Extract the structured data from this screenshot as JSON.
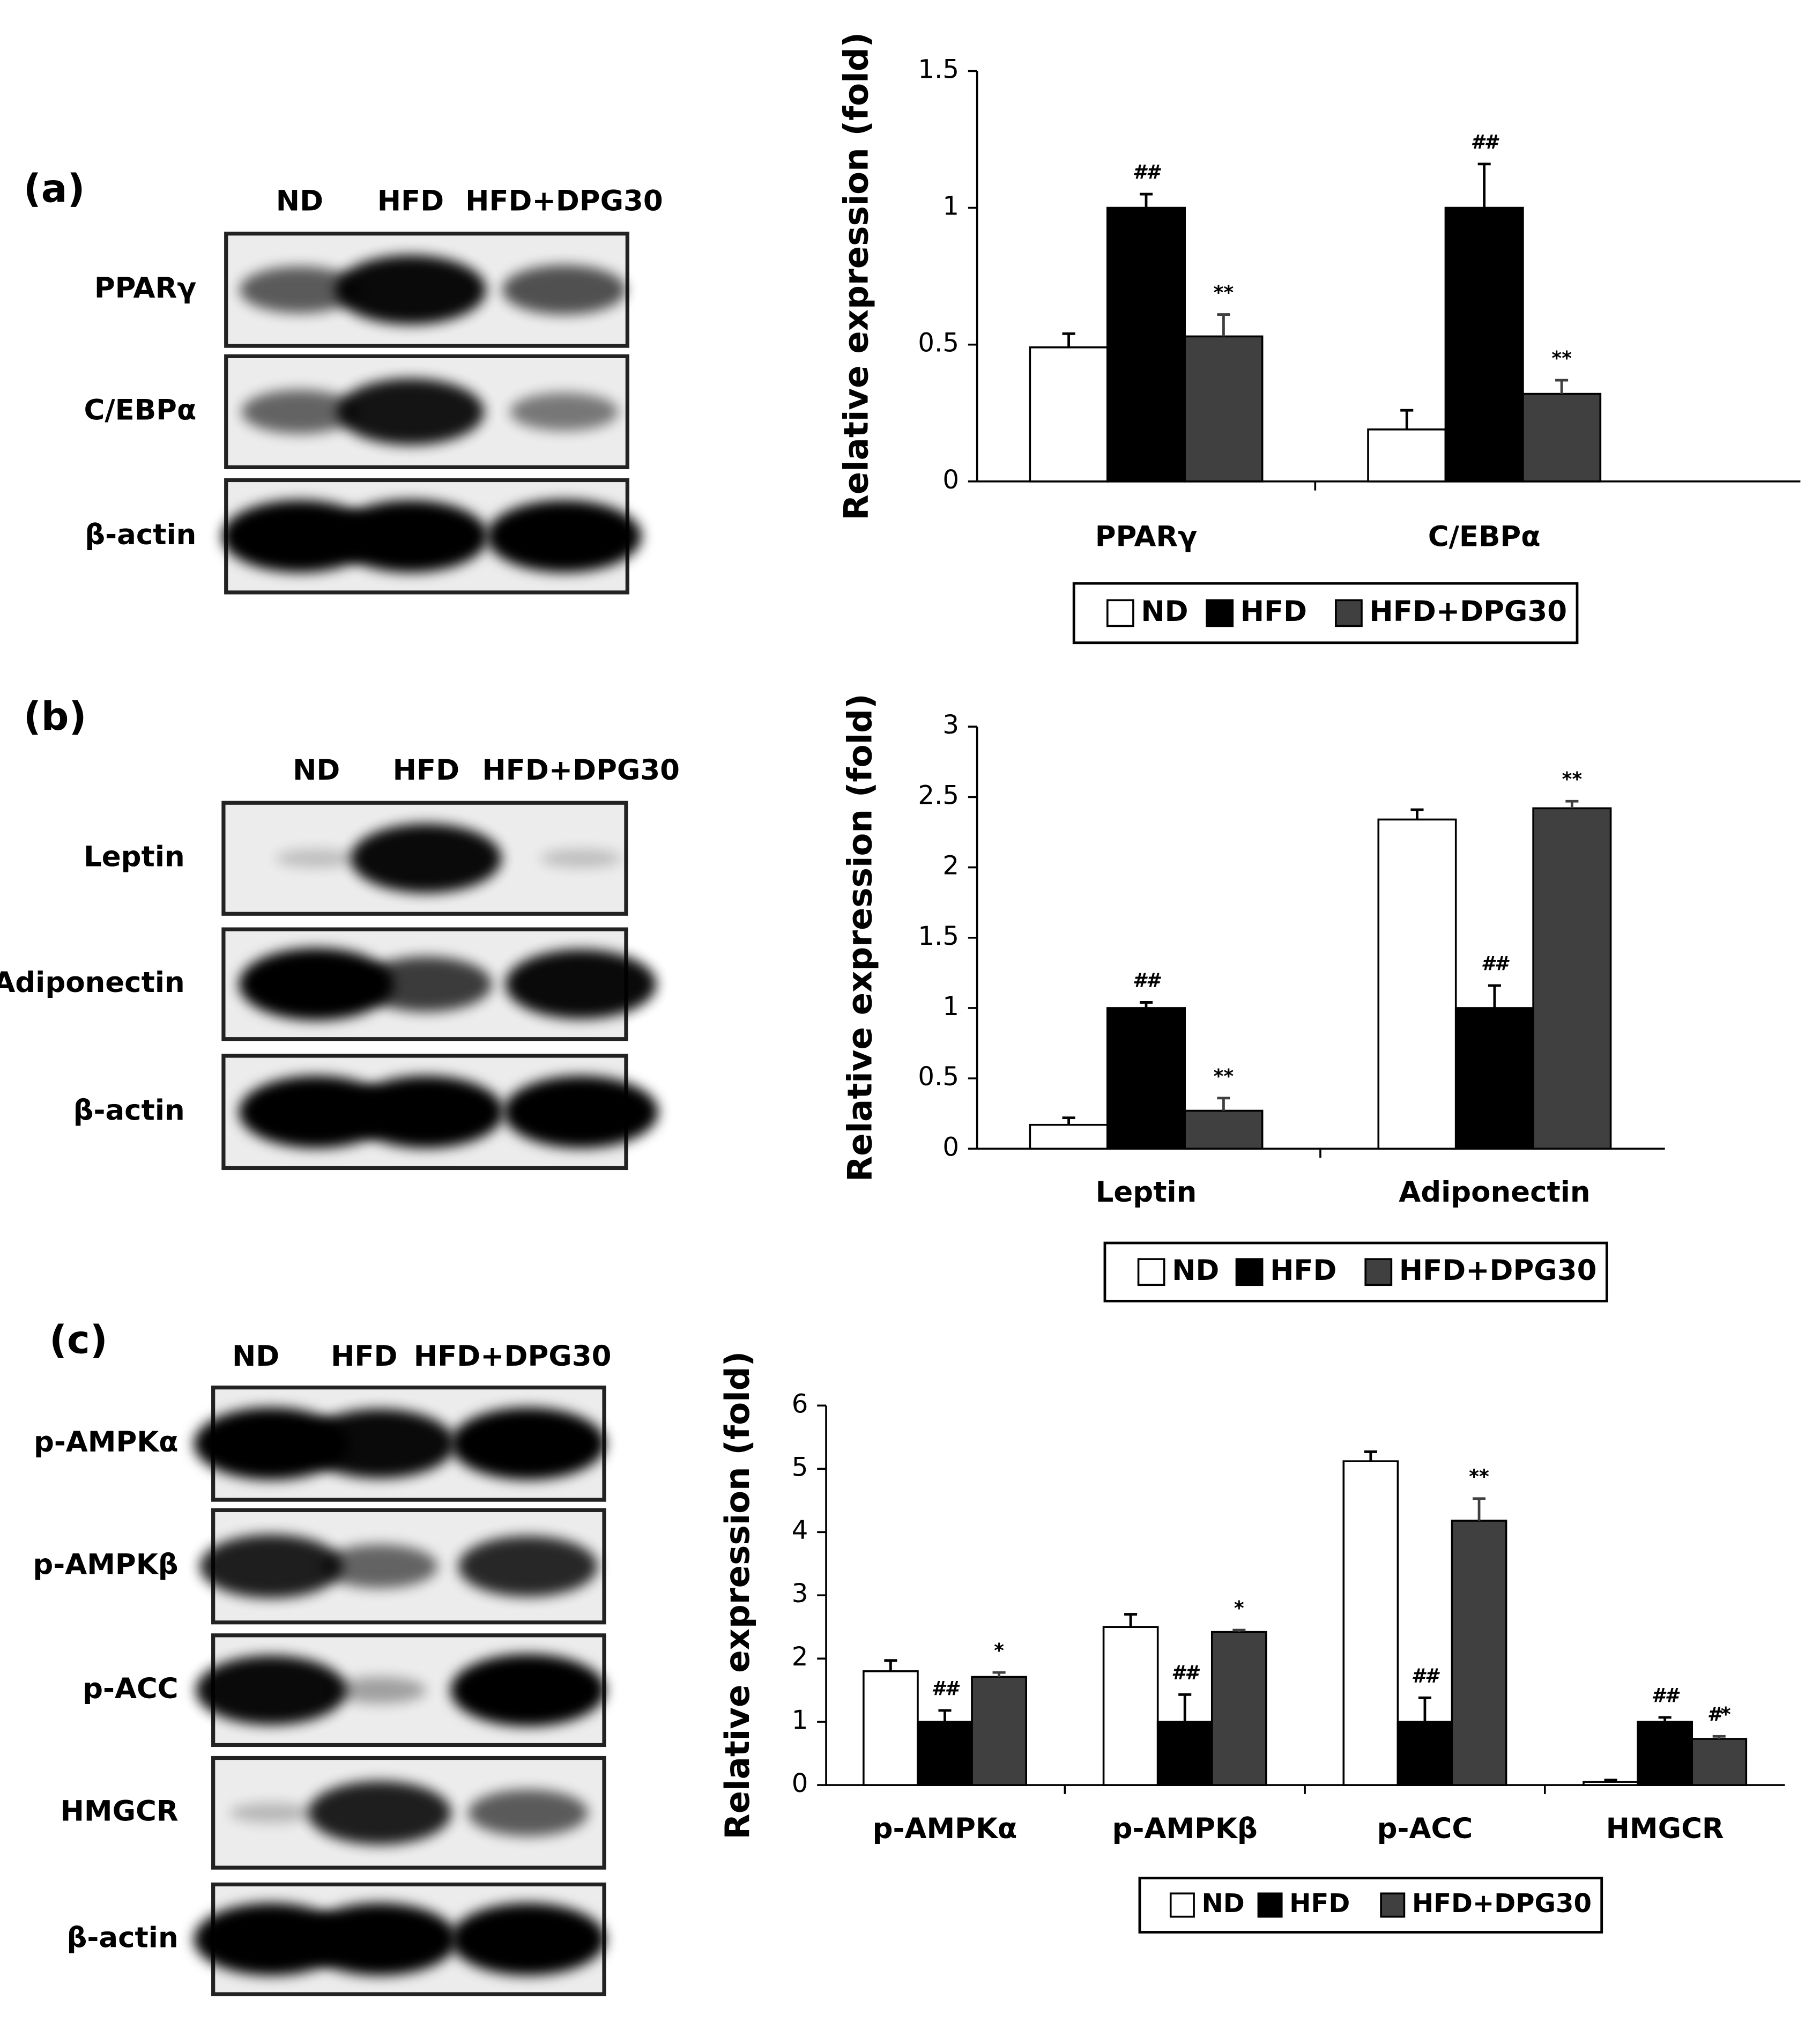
{
  "blots": [
    {
      "label": "(a)",
      "lanes": [
        "ND",
        "HFD",
        "HFD+DPG30"
      ],
      "rows": [
        "PPARγ",
        "C/EBPα",
        "β-actin"
      ]
    },
    {
      "label": "(b)",
      "lanes": [
        "ND",
        "HFD",
        "HFD+DPG30"
      ],
      "rows": [
        "Leptin",
        "Adiponectin",
        "β-actin"
      ]
    },
    {
      "label": "(c)",
      "lanes": [
        "ND",
        "HFD",
        "HFD+DPG30"
      ],
      "rows": [
        "p-AMPKα",
        "p-AMPKβ",
        "p-ACC",
        "HMGCR",
        "β-actin"
      ]
    }
  ],
  "chart_data": [
    {
      "type": "bar",
      "ylabel": "Relative expression  (fold)",
      "categories": [
        "PPARγ",
        "C/EBPα"
      ],
      "ylim": [
        0,
        1.5
      ],
      "yticks": [
        0,
        0.5,
        1,
        1.5
      ],
      "legend": "bottom",
      "series": [
        {
          "name": "ND",
          "color": "#ffffff",
          "values": [
            0.49,
            0.19
          ],
          "errors": [
            0.05,
            0.07
          ]
        },
        {
          "name": "HFD",
          "color": "#000000",
          "values": [
            1.0,
            1.0
          ],
          "errors": [
            0.05,
            0.16
          ],
          "significance": [
            "##",
            "##"
          ]
        },
        {
          "name": "HFD+DPG30",
          "color": "#404040",
          "values": [
            0.53,
            0.32
          ],
          "errors": [
            0.08,
            0.05
          ],
          "significance": [
            "**",
            "**"
          ]
        }
      ]
    },
    {
      "type": "bar",
      "ylabel": "Relative expression  (fold)",
      "categories": [
        "Leptin",
        "Adiponectin"
      ],
      "ylim": [
        0,
        3
      ],
      "yticks": [
        0,
        0.5,
        1,
        1.5,
        2,
        2.5,
        3
      ],
      "legend": "bottom",
      "series": [
        {
          "name": "ND",
          "color": "#ffffff",
          "values": [
            0.17,
            2.34
          ],
          "errors": [
            0.05,
            0.07
          ]
        },
        {
          "name": "HFD",
          "color": "#000000",
          "values": [
            1.0,
            1.0
          ],
          "errors": [
            0.04,
            0.16
          ],
          "significance": [
            "##",
            "##"
          ]
        },
        {
          "name": "HFD+DPG30",
          "color": "#404040",
          "values": [
            0.27,
            2.42
          ],
          "errors": [
            0.09,
            0.05
          ],
          "significance": [
            "**",
            "**"
          ]
        }
      ]
    },
    {
      "type": "bar",
      "ylabel": "Relative expression  (fold)",
      "categories": [
        "p-AMPKα",
        "p-AMPKβ",
        "p-ACC",
        "HMGCR"
      ],
      "ylim": [
        0,
        6
      ],
      "yticks": [
        0,
        1,
        2,
        3,
        4,
        5,
        6
      ],
      "legend": "bottom",
      "series": [
        {
          "name": "ND",
          "color": "#ffffff",
          "values": [
            1.8,
            2.5,
            5.12,
            0.05
          ],
          "errors": [
            0.17,
            0.2,
            0.15,
            0.03
          ]
        },
        {
          "name": "HFD",
          "color": "#000000",
          "values": [
            1.0,
            1.0,
            1.0,
            1.0
          ],
          "errors": [
            0.18,
            0.43,
            0.38,
            0.07
          ],
          "significance": [
            "##",
            "##",
            "##",
            "##"
          ]
        },
        {
          "name": "HFD+DPG30",
          "color": "#404040",
          "values": [
            1.71,
            2.42,
            4.18,
            0.73
          ],
          "errors": [
            0.07,
            0.03,
            0.35,
            0.04
          ],
          "significance": [
            "*",
            "*",
            "**",
            "#*"
          ]
        }
      ]
    }
  ]
}
